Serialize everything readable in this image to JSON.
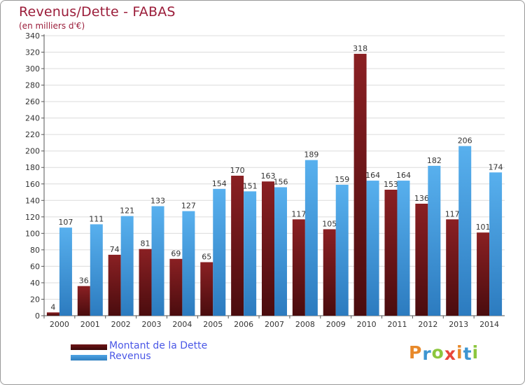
{
  "chart_data": {
    "type": "bar",
    "title": "Revenus/Dette - FABAS",
    "subtitle": "(en milliers d'€)",
    "categories": [
      "2000",
      "2001",
      "2002",
      "2003",
      "2004",
      "2005",
      "2006",
      "2007",
      "2008",
      "2009",
      "2010",
      "2011",
      "2012",
      "2013",
      "2014"
    ],
    "series": [
      {
        "name": "Montant de la Dette",
        "color": "#6e1416",
        "values": [
          4,
          36,
          74,
          81,
          69,
          65,
          170,
          163,
          117,
          105,
          318,
          153,
          136,
          117,
          101
        ]
      },
      {
        "name": "Revenus",
        "color": "#4ea3e4",
        "values": [
          107,
          111,
          121,
          133,
          127,
          154,
          151,
          156,
          189,
          159,
          164,
          164,
          182,
          206,
          174
        ]
      }
    ],
    "ylim": [
      0,
      340
    ],
    "ytick_step": 20,
    "grid": true,
    "legend_position": "bottom-left"
  },
  "legend": {
    "debt_label": "Montant de la Dette",
    "revenue_label": "Revenus",
    "debt_color": "#6e1416",
    "revenue_color": "#4ea3e4"
  },
  "logo": {
    "text": "Proxiti",
    "colors": [
      "#e8892a",
      "#3d95d1",
      "#8cc63e",
      "#e8463a",
      "#e8892a",
      "#3d95d1",
      "#8cc63e"
    ]
  }
}
